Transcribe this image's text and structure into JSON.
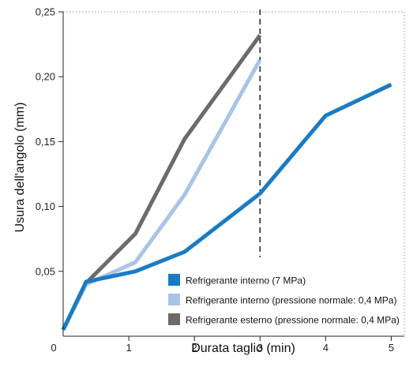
{
  "chart_data": {
    "type": "line",
    "xlabel": "Durata taglio (min)",
    "ylabel": "Usura dell'angolo (mm)",
    "xlim": [
      0,
      5.2
    ],
    "ylim": [
      0,
      0.25
    ],
    "x_ticks": [
      {
        "value": 0,
        "label": "0"
      },
      {
        "value": 1,
        "label": "1"
      },
      {
        "value": 2,
        "label": "2"
      },
      {
        "value": 3,
        "label": "3"
      },
      {
        "value": 4,
        "label": "4"
      },
      {
        "value": 5,
        "label": "5"
      }
    ],
    "y_ticks": [
      {
        "value": 0.05,
        "label": "0,05"
      },
      {
        "value": 0.1,
        "label": "0,10"
      },
      {
        "value": 0.15,
        "label": "0,15"
      },
      {
        "value": 0.2,
        "label": "0,20"
      },
      {
        "value": 0.25,
        "label": "0,25"
      }
    ],
    "grid": false,
    "plot_frame": "dotted top and right border",
    "legend_position": "bottom-right",
    "reference_line": {
      "x": 3,
      "style": "dashed",
      "color": "#222222"
    },
    "series": [
      {
        "name": "Refrigerante interno (7 MPa)",
        "color": "#1a7bc4",
        "points": [
          {
            "x": 0,
            "y": 0.005
          },
          {
            "x": 0.35,
            "y": 0.042
          },
          {
            "x": 1.1,
            "y": 0.05
          },
          {
            "x": 1.85,
            "y": 0.065
          },
          {
            "x": 3.0,
            "y": 0.11
          },
          {
            "x": 4.0,
            "y": 0.17
          },
          {
            "x": 5.0,
            "y": 0.194
          }
        ]
      },
      {
        "name": "Refrigerante interno (pressione normale: 0,4 MPa)",
        "color": "#a9c4e6",
        "points": [
          {
            "x": 0,
            "y": 0.005
          },
          {
            "x": 0.35,
            "y": 0.04
          },
          {
            "x": 1.1,
            "y": 0.057
          },
          {
            "x": 1.85,
            "y": 0.109
          },
          {
            "x": 3.0,
            "y": 0.213
          }
        ]
      },
      {
        "name": "Refrigerante esterno (pressione normale: 0,4 MPa)",
        "color": "#6b6b6b",
        "points": [
          {
            "x": 0,
            "y": 0.005
          },
          {
            "x": 0.35,
            "y": 0.041
          },
          {
            "x": 1.1,
            "y": 0.079
          },
          {
            "x": 1.85,
            "y": 0.152
          },
          {
            "x": 3.0,
            "y": 0.232
          }
        ]
      }
    ]
  }
}
